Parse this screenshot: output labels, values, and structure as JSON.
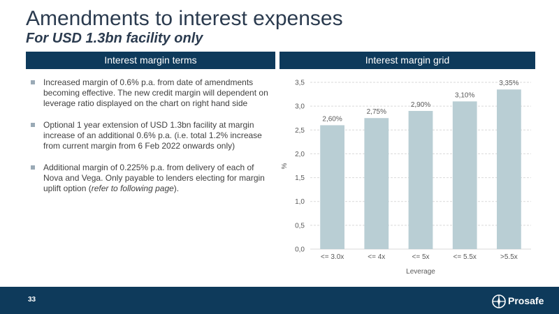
{
  "header": {
    "title": "Amendments to interest expenses",
    "subtitle": "For USD 1.3bn facility only"
  },
  "left_panel": {
    "heading": "Interest margin terms",
    "bullets": [
      {
        "text": "Increased margin of 0.6% p.a. from date of amendments becoming effective.  The new credit margin will dependent on leverage ratio displayed on the chart on right hand side"
      },
      {
        "text": "Optional 1 year extension of USD 1.3bn facility at margin increase of an additional 0.6% p.a. (i.e. total 1.2% increase from current margin from 6 Feb 2022 onwards only)"
      },
      {
        "text_before": "Additional margin of 0.225% p.a. from delivery of each of Nova and Vega. Only payable to lenders electing for margin uplift option (",
        "text_italic": "refer to following page",
        "text_after": ")."
      }
    ]
  },
  "right_panel": {
    "heading": "Interest margin grid"
  },
  "chart_data": {
    "type": "bar",
    "categories": [
      "<= 3.0x",
      "<= 4x",
      "<= 5x",
      "<= 5.5x",
      ">5.5x"
    ],
    "values": [
      2.6,
      2.75,
      2.9,
      3.1,
      3.35
    ],
    "data_labels": [
      "2,60%",
      "2,75%",
      "2,90%",
      "3,10%",
      "3,35%"
    ],
    "xlabel": "Leverage",
    "ylabel": "%",
    "ylim": [
      0,
      3.5
    ],
    "yticks": [
      0,
      0.5,
      1.0,
      1.5,
      2.0,
      2.5,
      3.0,
      3.5
    ],
    "ytick_labels": [
      "0,0",
      "0,5",
      "1,0",
      "1,5",
      "2,0",
      "2,5",
      "3,0",
      "3,5"
    ],
    "grid": true,
    "bar_color": "#b9ced4",
    "grid_color": "#d9d9d9"
  },
  "footer": {
    "page_number": "33",
    "brand": "Prosafe",
    "logo_icon": "prosafe-compass-logo-icon",
    "background": "#0e3a5b"
  }
}
